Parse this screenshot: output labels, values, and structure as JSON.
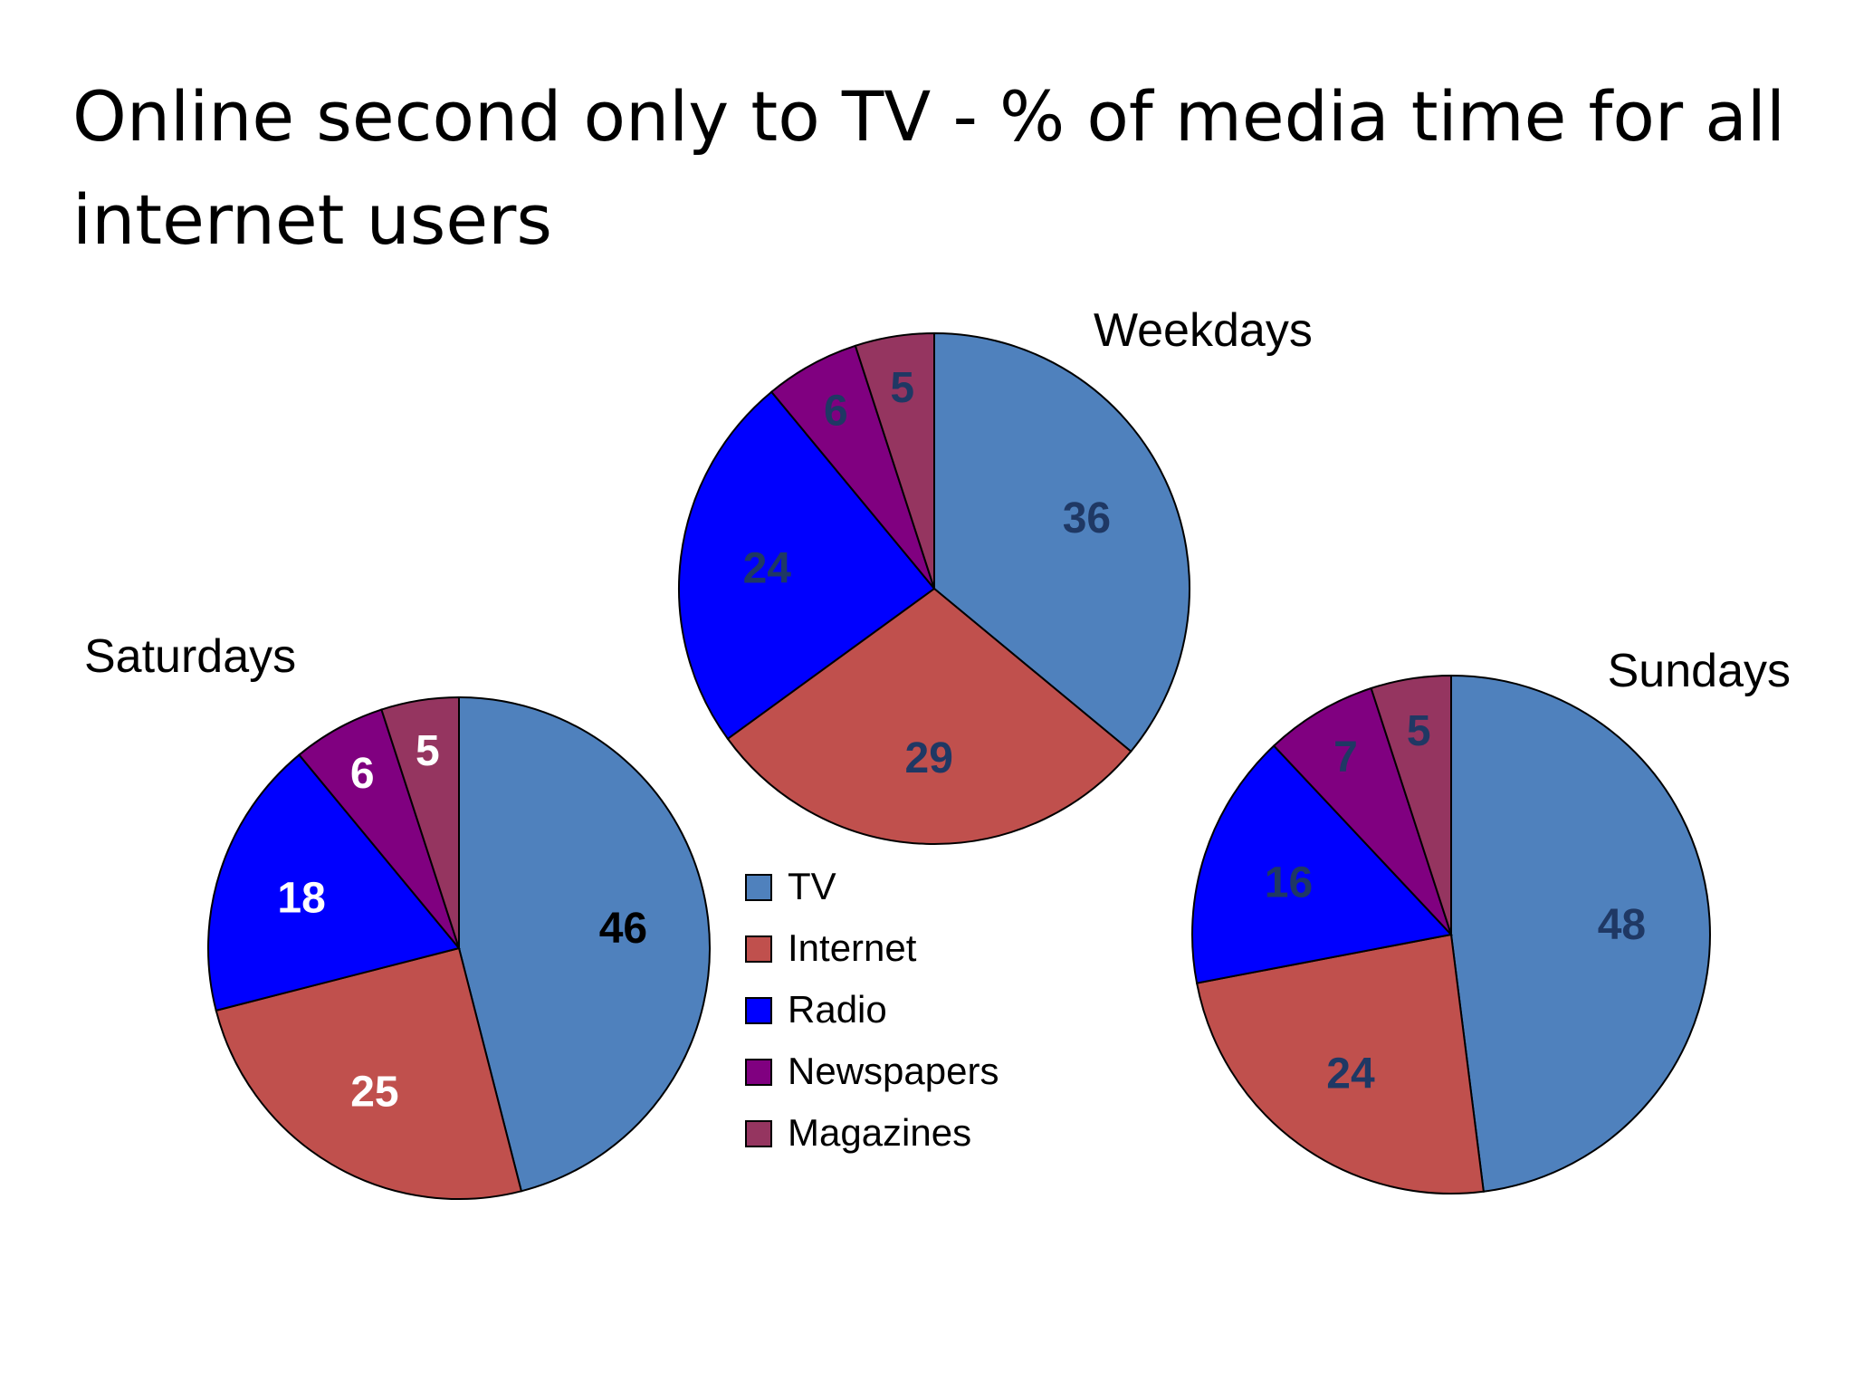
{
  "title": "Online second only to TV - % of media time for all internet users",
  "chart_data": {
    "type": "pie",
    "unit": "%",
    "categories": [
      "TV",
      "Internet",
      "Radio",
      "Newspapers",
      "Magazines"
    ],
    "colors": [
      "#4F81BD",
      "#C0504D",
      "#0000FF",
      "#800080",
      "#953560"
    ],
    "legend_position": "center-bottom",
    "pies": [
      {
        "name": "Weekdays",
        "values": [
          36,
          29,
          24,
          6,
          5
        ],
        "label_colors": [
          "#1F3864",
          "#1F3864",
          "#1F3864",
          "#1F3864",
          "#1F3864"
        ]
      },
      {
        "name": "Saturdays",
        "values": [
          46,
          25,
          18,
          6,
          5
        ],
        "label_colors": [
          "#000000",
          "#FFFFFF",
          "#FFFFFF",
          "#FFFFFF",
          "#FFFFFF"
        ]
      },
      {
        "name": "Sundays",
        "values": [
          48,
          24,
          16,
          7,
          5
        ],
        "label_colors": [
          "#1F3864",
          "#1F3864",
          "#1F3864",
          "#1F3864",
          "#1F3864"
        ]
      }
    ]
  }
}
